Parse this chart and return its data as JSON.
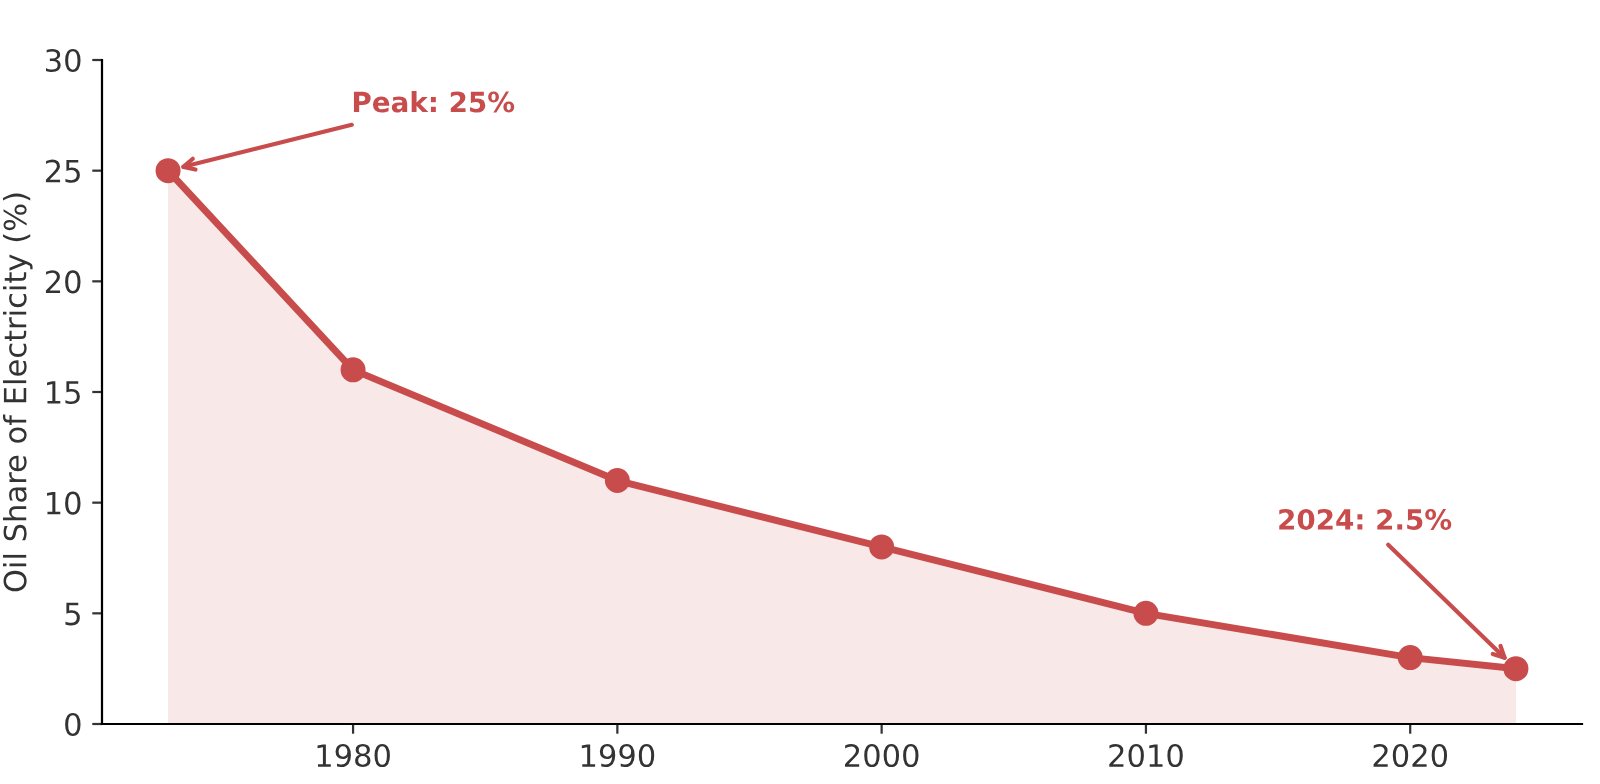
{
  "chart_data": {
    "type": "area",
    "ylabel": "Oil Share of Electricity (%)",
    "x": [
      1973,
      1980,
      1990,
      2000,
      2010,
      2020,
      2024
    ],
    "series": [
      {
        "color": "#c94c4c",
        "values": [
          25,
          16,
          11,
          8,
          5,
          3,
          2.5
        ]
      }
    ],
    "xlim": [
      1970.5,
      2026.5
    ],
    "xticks": [
      1980,
      1990,
      2000,
      2010,
      2020
    ],
    "ylim": [
      0,
      30
    ],
    "yticks": [
      0,
      5,
      10,
      15,
      20,
      25,
      30
    ],
    "marker": "circle",
    "line_style": "solid",
    "grid": false,
    "legend": false,
    "annotations": [
      {
        "text": "Peak: 25%",
        "x": 1973,
        "y": 25
      },
      {
        "text": "2024: 2.5%",
        "x": 2024,
        "y": 2.5
      }
    ]
  }
}
